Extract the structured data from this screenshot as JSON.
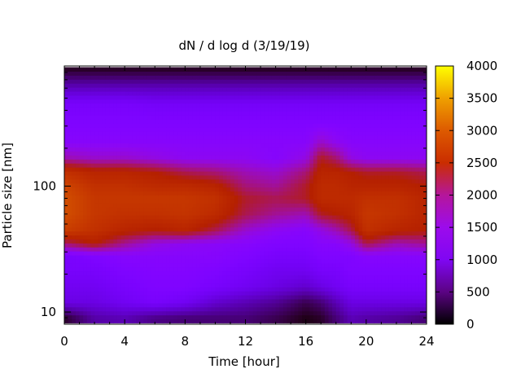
{
  "chart_data": {
    "type": "heatmap",
    "title": "dN / d log d (3/19/19)",
    "xlabel": "Time [hour]",
    "ylabel": "Particle size [nm]",
    "xlim": [
      0,
      24
    ],
    "xticks": [
      0,
      4,
      8,
      12,
      16,
      20,
      24
    ],
    "xtick_labels": [
      "0",
      "4",
      "8",
      "12",
      "16",
      "20",
      "24"
    ],
    "yscale": "log",
    "ylim": [
      8,
      900
    ],
    "yticks": [
      10,
      100
    ],
    "ytick_labels": [
      "10",
      "100"
    ],
    "colorbar": {
      "min": 0,
      "max": 4000,
      "ticks": [
        0,
        500,
        1000,
        1500,
        2000,
        2500,
        3000,
        3500,
        4000
      ],
      "tick_labels": [
        "0",
        "500",
        "1000",
        "1500",
        "2000",
        "2500",
        "3000",
        "3500",
        "4000"
      ],
      "colormap": "gnuplot"
    },
    "time_hours": [
      0,
      2,
      4,
      6,
      8,
      10,
      12,
      14,
      16,
      17,
      18,
      19,
      20,
      22,
      24
    ],
    "size_nm": [
      9,
      12,
      16,
      22,
      28,
      35,
      45,
      60,
      80,
      100,
      130,
      170,
      230,
      320,
      450,
      650,
      850
    ],
    "values": [
      [
        100,
        700,
        800,
        900,
        900,
        1700,
        2500,
        2700,
        2700,
        2600,
        2300,
        1500,
        1100,
        1000,
        900,
        450,
        100
      ],
      [
        450,
        700,
        800,
        900,
        1000,
        2000,
        2300,
        2400,
        2400,
        2300,
        2100,
        1400,
        1100,
        1000,
        900,
        450,
        100
      ],
      [
        500,
        800,
        900,
        1000,
        1100,
        1600,
        2100,
        2300,
        2400,
        2300,
        2100,
        1400,
        1100,
        1000,
        900,
        450,
        100
      ],
      [
        350,
        900,
        1000,
        1050,
        1100,
        1300,
        2000,
        2300,
        2400,
        2200,
        2000,
        1300,
        1100,
        1000,
        850,
        450,
        100
      ],
      [
        300,
        800,
        1000,
        1050,
        1100,
        1200,
        2100,
        2350,
        2400,
        2200,
        1800,
        1200,
        1100,
        1000,
        850,
        450,
        100
      ],
      [
        300,
        600,
        900,
        1000,
        1100,
        1150,
        1800,
        2200,
        2300,
        2100,
        1700,
        1200,
        1100,
        1000,
        850,
        450,
        100
      ],
      [
        300,
        500,
        800,
        900,
        1000,
        1100,
        1400,
        1800,
        1900,
        1700,
        1500,
        1200,
        1100,
        1000,
        850,
        450,
        100
      ],
      [
        200,
        400,
        700,
        800,
        900,
        1000,
        1200,
        1600,
        1800,
        1600,
        1400,
        1100,
        1100,
        1000,
        850,
        450,
        100
      ],
      [
        50,
        200,
        600,
        800,
        900,
        1000,
        1100,
        1500,
        1900,
        1900,
        1700,
        1300,
        1100,
        1000,
        850,
        450,
        100
      ],
      [
        100,
        300,
        700,
        900,
        1000,
        1100,
        1300,
        1900,
        2200,
        2200,
        2100,
        1900,
        1400,
        1000,
        850,
        450,
        100
      ],
      [
        300,
        500,
        800,
        900,
        1000,
        1100,
        1500,
        2000,
        2200,
        2200,
        2100,
        1700,
        1200,
        1000,
        850,
        450,
        100
      ],
      [
        500,
        700,
        900,
        1000,
        1000,
        1300,
        1800,
        2100,
        2200,
        2100,
        2000,
        1300,
        1100,
        1000,
        850,
        450,
        100
      ],
      [
        450,
        700,
        900,
        1000,
        1100,
        1800,
        2300,
        2400,
        2300,
        2100,
        1900,
        1200,
        1100,
        1000,
        850,
        450,
        100
      ],
      [
        400,
        700,
        900,
        1000,
        1100,
        1500,
        2100,
        2300,
        2300,
        2100,
        1900,
        1200,
        1100,
        1000,
        850,
        450,
        100
      ],
      [
        300,
        700,
        900,
        1000,
        1100,
        1600,
        2000,
        2100,
        2100,
        2000,
        1800,
        1200,
        1100,
        1000,
        850,
        450,
        100
      ]
    ]
  }
}
